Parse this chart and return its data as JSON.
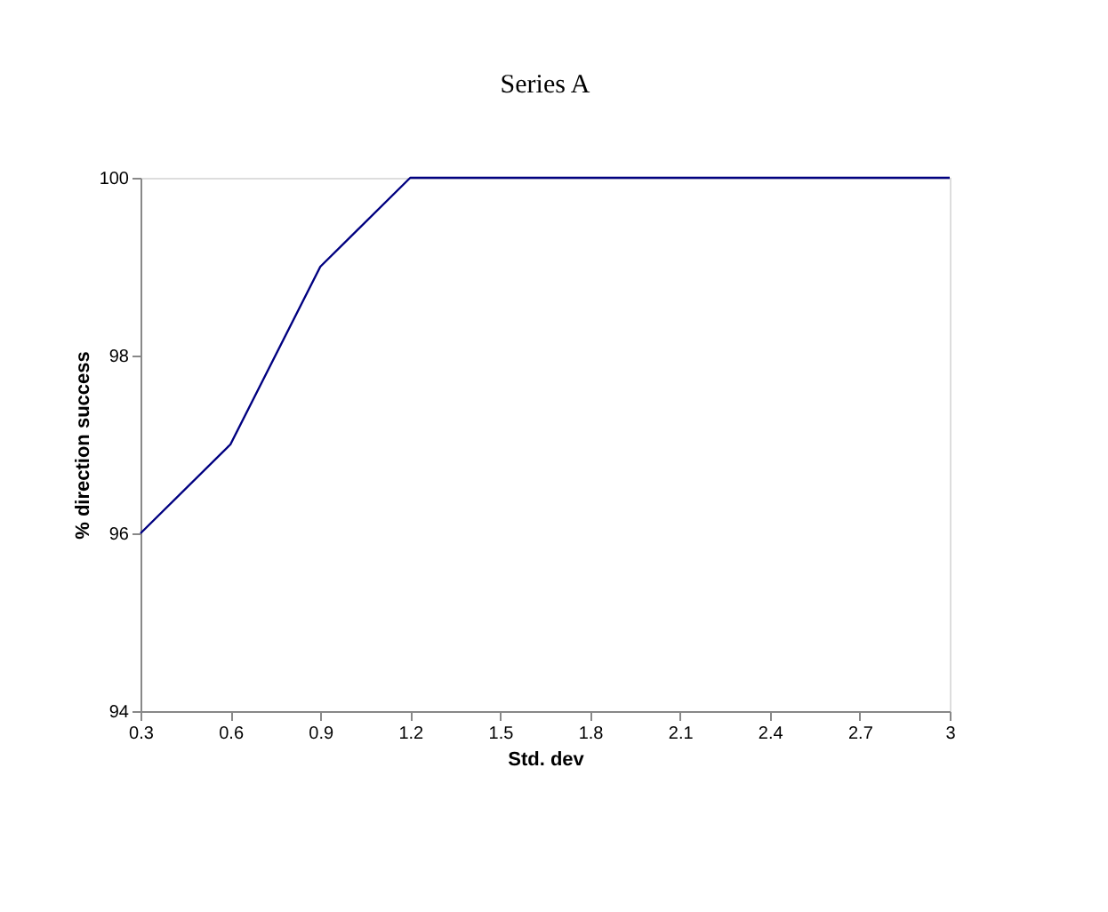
{
  "chart_data": {
    "type": "line",
    "title": "Series A",
    "xlabel": "Std. dev",
    "ylabel": "% direction success",
    "x": [
      0.3,
      0.6,
      0.9,
      1.2,
      1.5,
      1.8,
      2.1,
      2.4,
      2.7,
      3
    ],
    "series": [
      {
        "color": "#000080",
        "values": [
          96,
          97,
          99,
          100,
          100,
          100,
          100,
          100,
          100,
          100
        ]
      }
    ],
    "xlim": [
      0.3,
      3
    ],
    "xticks": [
      0.3,
      0.6,
      0.9,
      1.2,
      1.5,
      1.8,
      2.1,
      2.4,
      2.7,
      3
    ],
    "ylim": [
      94,
      100
    ],
    "yticks": [
      94,
      96,
      98,
      100
    ],
    "grid": false,
    "legend": false,
    "marker": "none",
    "line_style": "solid"
  }
}
